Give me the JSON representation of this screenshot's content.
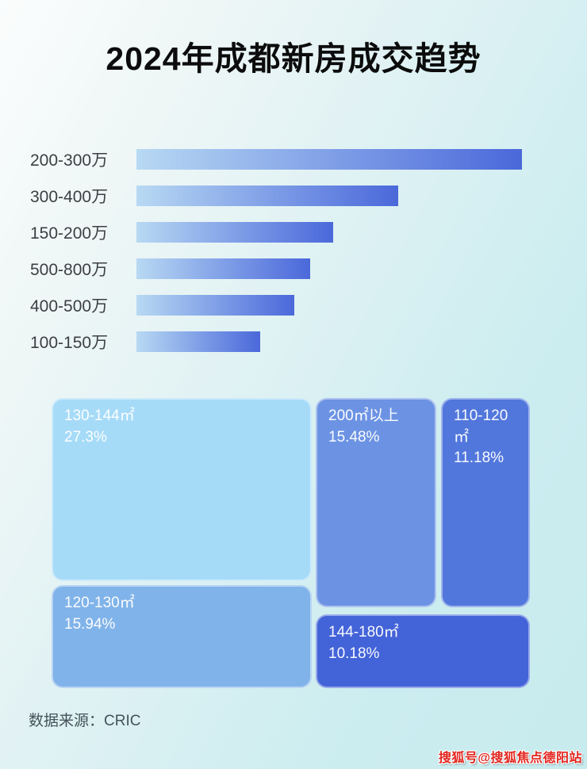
{
  "title": "2024年成都新房成交趋势",
  "colors": {
    "background_start": "#fbfdfd",
    "background_end": "#c7ebee",
    "bar_gradient_start": "#b8d9f3",
    "bar_gradient_end": "#4b68da",
    "bar_label_text": "#3d4043",
    "title_text": "#0c0c0d",
    "footer_text": "#44525a",
    "watermark_red": "#e2241d",
    "block_text": "#ffffff"
  },
  "chart_data": [
    {
      "type": "bar",
      "orientation": "horizontal",
      "title": "",
      "xlabel": "",
      "ylabel": "",
      "grid": false,
      "legend": false,
      "value_labels_shown": false,
      "note": "no numeric axis shown; bar lengths estimated from pixels as % of longest bar",
      "categories": [
        "200-300万",
        "300-400万",
        "150-200万",
        "500-800万",
        "400-500万",
        "100-150万"
      ],
      "values_pct_of_max": [
        100,
        68,
        51,
        45,
        41,
        32
      ]
    },
    {
      "type": "treemap",
      "grid": false,
      "legend": false,
      "items": [
        {
          "label": "130-144㎡",
          "value": 27.3,
          "value_label": "27.3%",
          "color": "#a6dbf8"
        },
        {
          "label": "200㎡以上",
          "value": 15.48,
          "value_label": "15.48%",
          "color": "#6c93e3"
        },
        {
          "label": "110-120㎡",
          "value": 11.18,
          "value_label": "11.18%",
          "color": "#5277dc"
        },
        {
          "label": "120-130㎡",
          "value": 15.94,
          "value_label": "15.94%",
          "color": "#80b3e9"
        },
        {
          "label": "144-180㎡",
          "value": 10.18,
          "value_label": "10.18%",
          "color": "#4363d8"
        }
      ]
    }
  ],
  "footer": {
    "source_label": "数据来源：CRIC"
  },
  "watermark": "搜狐号@搜狐焦点德阳站"
}
